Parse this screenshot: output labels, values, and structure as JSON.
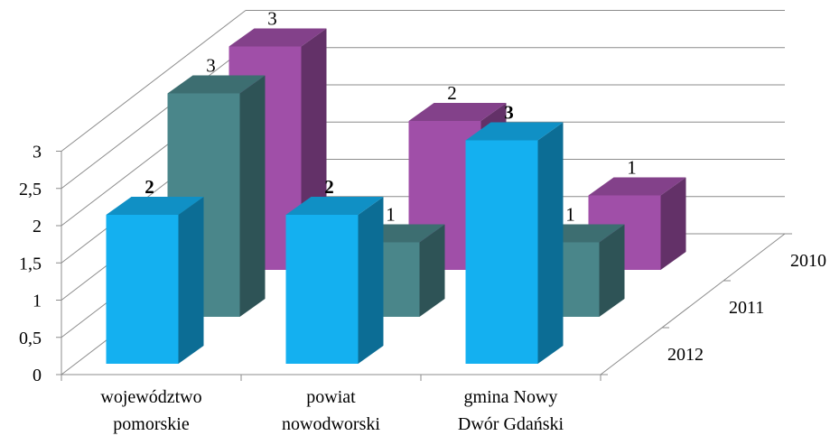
{
  "chart_data": {
    "type": "bar",
    "categories": [
      [
        "województwo",
        "pomorskie"
      ],
      [
        "powiat",
        "nowodworski"
      ],
      [
        "gmina Nowy",
        "Dwór Gdański"
      ]
    ],
    "series": [
      {
        "name": "2010",
        "values": [
          3,
          2,
          1
        ],
        "color": "#A04FA8",
        "data_labels": [
          "3",
          "2",
          "1"
        ],
        "bold_labels": false
      },
      {
        "name": "2011",
        "values": [
          3,
          1,
          1
        ],
        "color": "#4A868A",
        "data_labels": [
          "3",
          "1",
          "1"
        ],
        "bold_labels": false
      },
      {
        "name": "2012",
        "values": [
          2,
          2,
          3
        ],
        "color": "#14B0F0",
        "data_labels": [
          "2",
          "2",
          "3"
        ],
        "bold_labels": true
      }
    ],
    "y_ticks": [
      "0",
      "0,5",
      "1",
      "1,5",
      "2",
      "2,5",
      "3"
    ],
    "ylim": [
      0,
      3
    ],
    "depth_axis_labels": [
      "2010",
      "2011",
      "2012"
    ],
    "grid": true,
    "three_d": true
  }
}
